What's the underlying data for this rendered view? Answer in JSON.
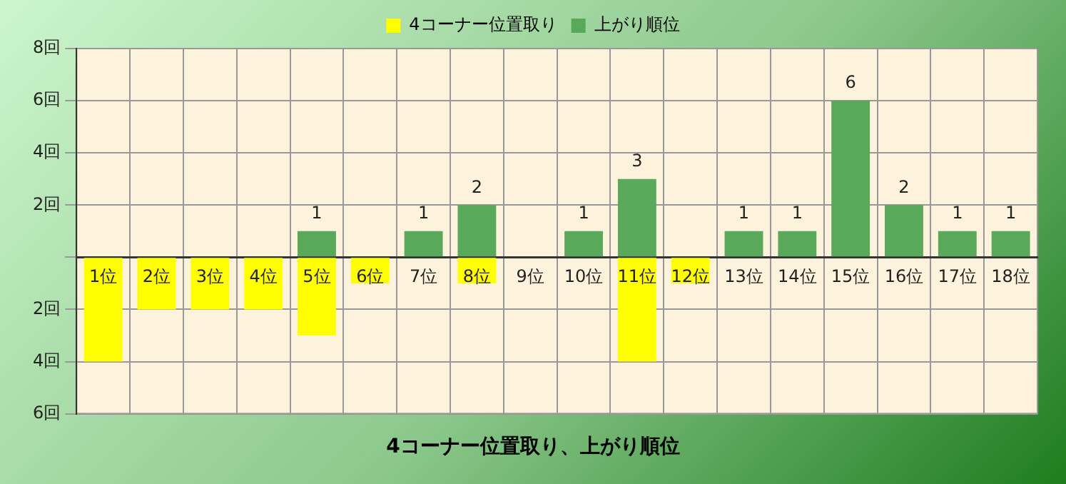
{
  "chart_data": {
    "type": "bar",
    "title": "4コーナー位置取り、上がり順位",
    "categories": [
      "1位",
      "2位",
      "3位",
      "4位",
      "5位",
      "6位",
      "7位",
      "8位",
      "9位",
      "10位",
      "11位",
      "12位",
      "13位",
      "14位",
      "15位",
      "16位",
      "17位",
      "18位"
    ],
    "series": [
      {
        "name": "4コーナー位置取り",
        "color": "#ffff00",
        "values": [
          -4,
          -2,
          -2,
          -2,
          -3,
          -1,
          null,
          -1,
          null,
          null,
          -4,
          -1,
          null,
          null,
          null,
          null,
          null,
          null
        ]
      },
      {
        "name": "上がり順位",
        "color": "#5aa85a",
        "values": [
          null,
          null,
          null,
          null,
          1,
          null,
          1,
          2,
          null,
          1,
          3,
          null,
          1,
          1,
          6,
          2,
          1,
          1
        ],
        "value_labels": [
          null,
          null,
          null,
          null,
          "1",
          null,
          "1",
          "2",
          null,
          "1",
          "3",
          null,
          "1",
          "1",
          "6",
          "2",
          "1",
          "1"
        ]
      }
    ],
    "stacked": true,
    "ylim": [
      -6,
      8
    ],
    "yticks": [
      {
        "value": -6,
        "label": "6回"
      },
      {
        "value": -4,
        "label": "4回"
      },
      {
        "value": -2,
        "label": "2回"
      },
      {
        "value": 0,
        "label": null
      },
      {
        "value": 2,
        "label": "2回"
      },
      {
        "value": 4,
        "label": "4回"
      },
      {
        "value": 6,
        "label": "6回"
      },
      {
        "value": 8,
        "label": "8回"
      }
    ],
    "grid": true,
    "legend": "top"
  }
}
